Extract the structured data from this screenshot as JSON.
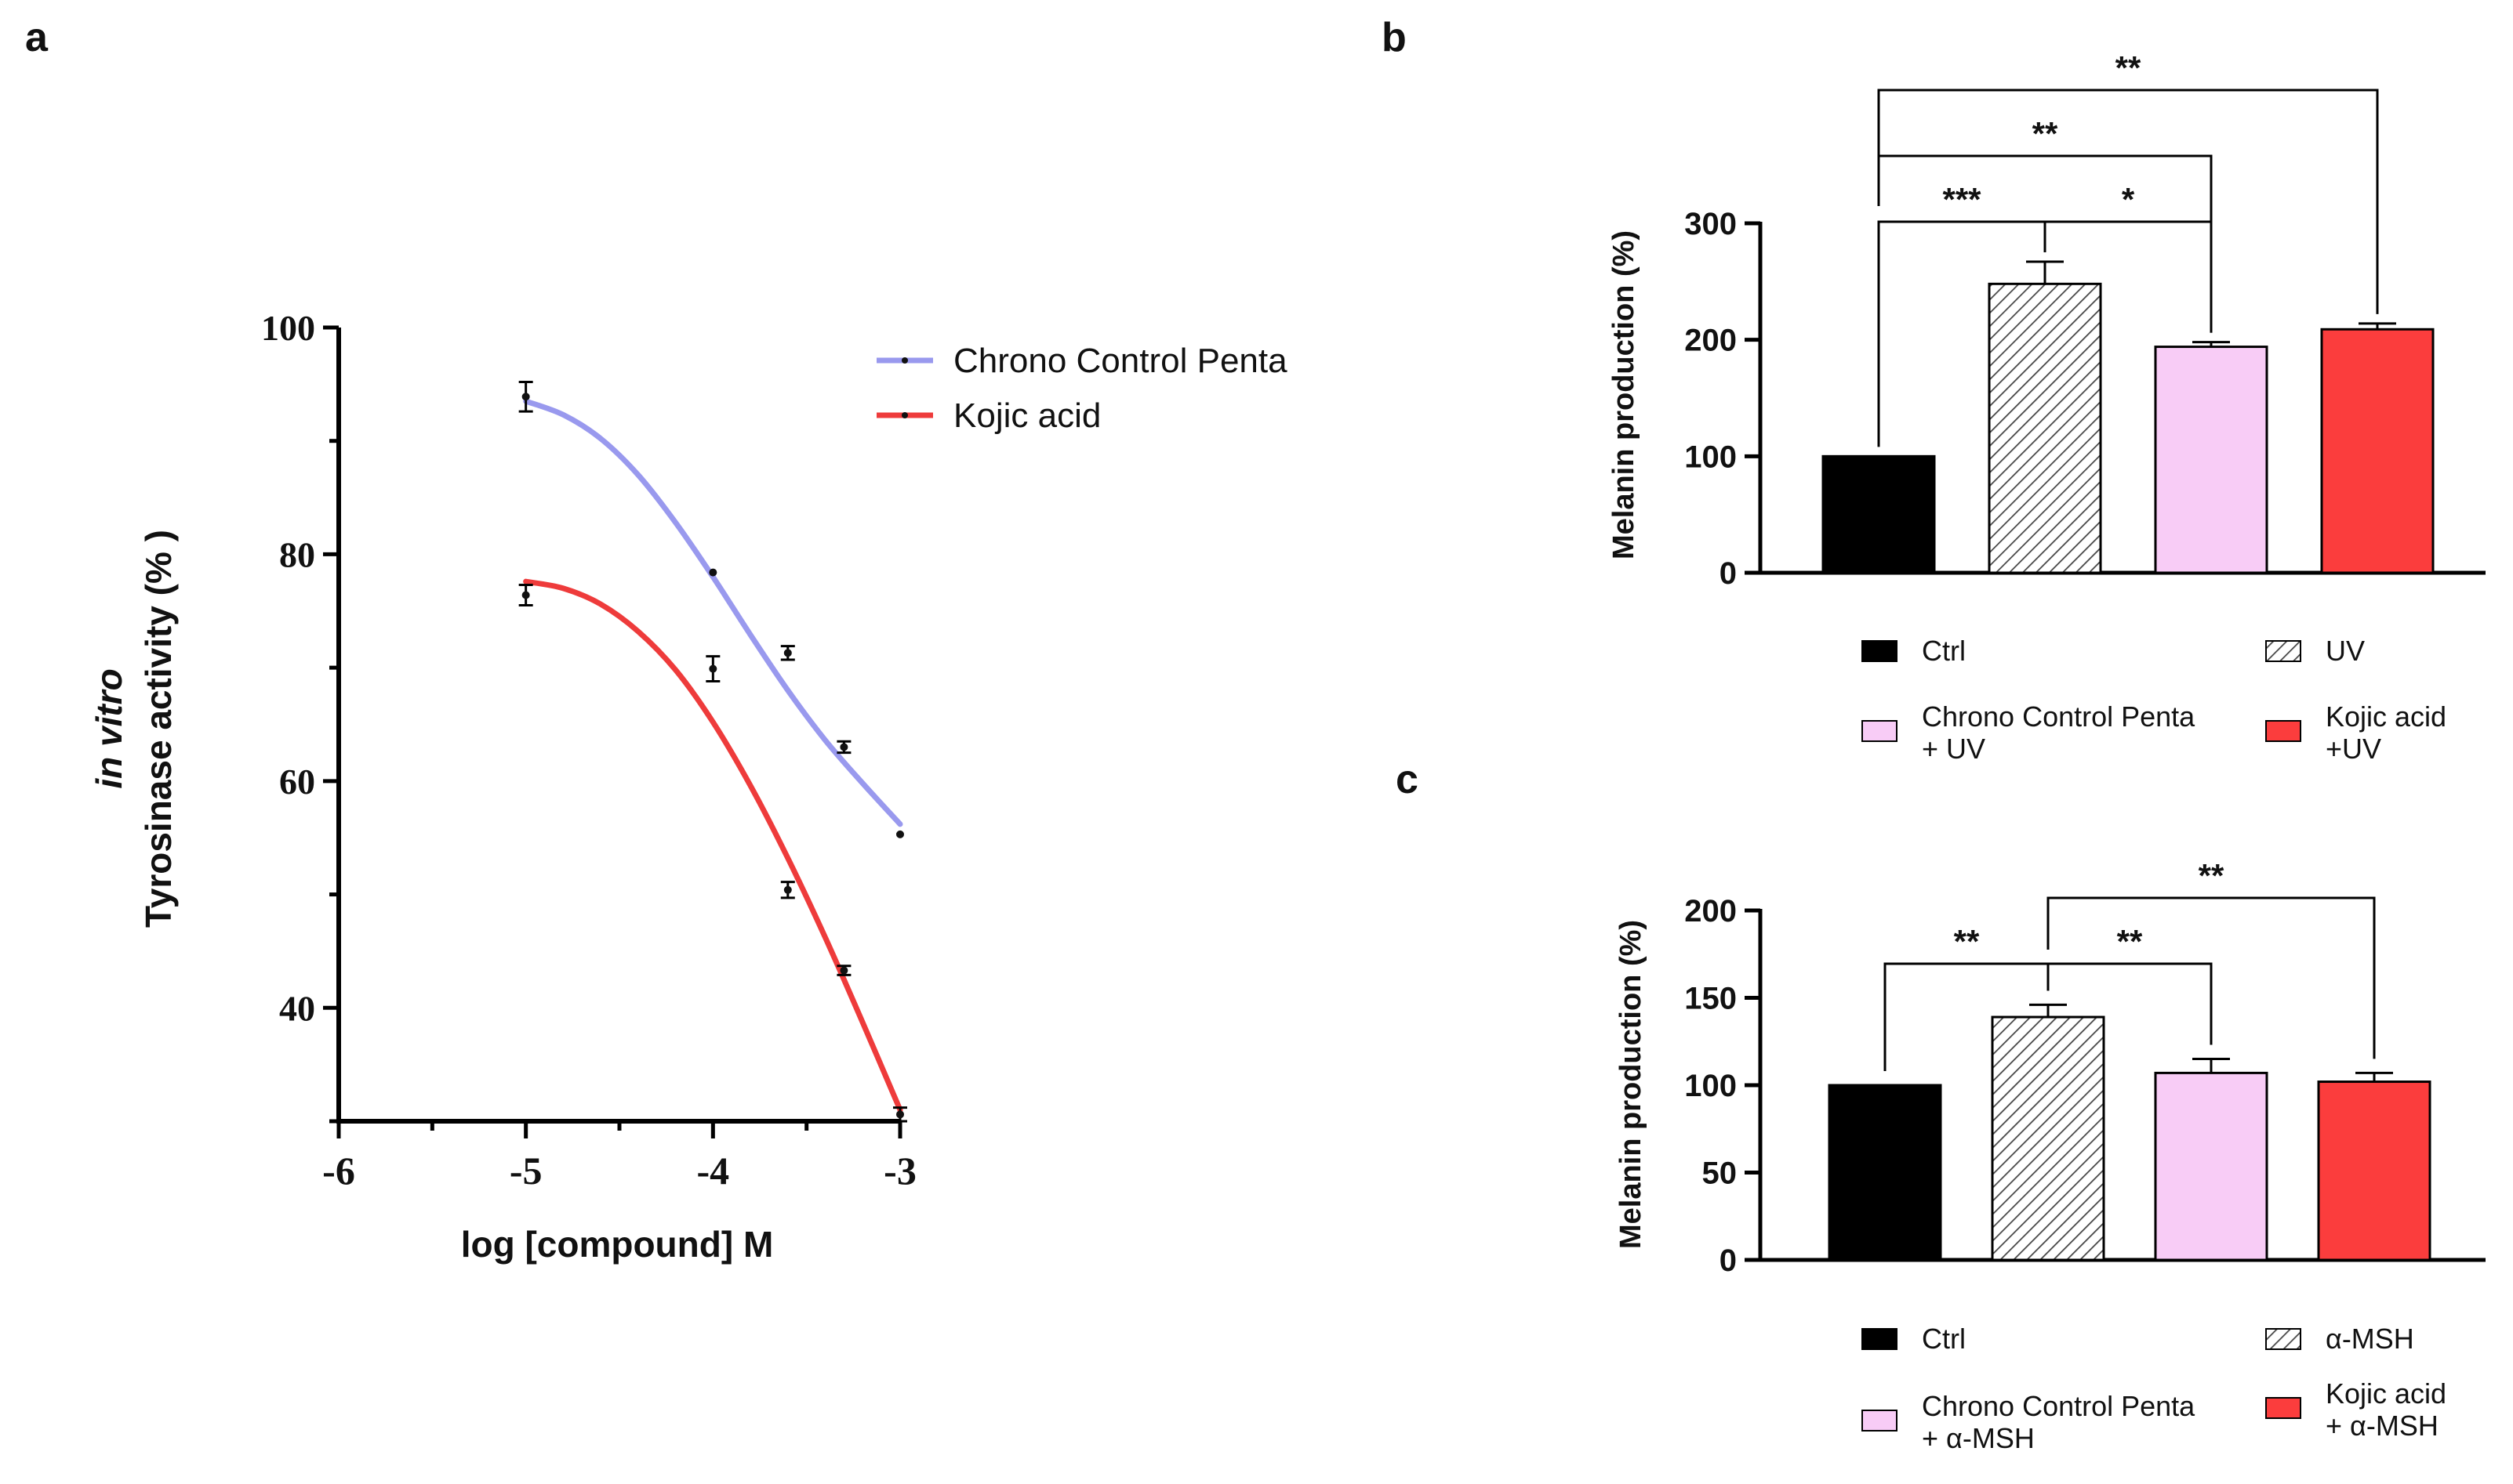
{
  "chart_data": [
    {
      "panel_label": "a",
      "type": "line",
      "ylabel_line1": "in vitro",
      "ylabel_line2": "Tyrosinase activity (% )",
      "xlabel": "log [compound] M",
      "xlim": [
        -6,
        -3
      ],
      "ylim": [
        30,
        100
      ],
      "x_ticks": [
        -6,
        -5,
        -4,
        -3
      ],
      "x_tick_labels": [
        "-6",
        "-5",
        "-4",
        "-3"
      ],
      "y_ticks": [
        40,
        60,
        80,
        100
      ],
      "y_tick_labels": [
        "40",
        "60",
        "80",
        "100"
      ],
      "legend_position": "top-right",
      "series": [
        {
          "name": "Chrono Control Penta",
          "color": "#9999ee",
          "points": [
            {
              "x": -5,
              "y": 93.9,
              "err": 1.3
            },
            {
              "x": -4,
              "y": 78.4,
              "err": 0
            },
            {
              "x": -3.6,
              "y": 71.3,
              "err": 0.6
            },
            {
              "x": -3.3,
              "y": 63.0,
              "err": 0.5
            },
            {
              "x": -3,
              "y": 55.3,
              "err": 0
            }
          ],
          "fit": [
            {
              "x": -5,
              "y": 93.5
            },
            {
              "x": -4.8,
              "y": 92.3
            },
            {
              "x": -4.6,
              "y": 90.2
            },
            {
              "x": -4.4,
              "y": 87.0
            },
            {
              "x": -4.2,
              "y": 82.8
            },
            {
              "x": -4.0,
              "y": 78.0
            },
            {
              "x": -3.8,
              "y": 72.9
            },
            {
              "x": -3.6,
              "y": 68.0
            },
            {
              "x": -3.4,
              "y": 63.6
            },
            {
              "x": -3.2,
              "y": 59.8
            },
            {
              "x": -3.0,
              "y": 56.2
            }
          ]
        },
        {
          "name": "Kojic acid",
          "color": "#ee3b3b",
          "points": [
            {
              "x": -5,
              "y": 76.4,
              "err": 0.9
            },
            {
              "x": -4,
              "y": 69.9,
              "err": 1.1
            },
            {
              "x": -3.6,
              "y": 50.4,
              "err": 0.7
            },
            {
              "x": -3.3,
              "y": 43.3,
              "err": 0.4
            },
            {
              "x": -3,
              "y": 30.6,
              "err": 0.6
            }
          ],
          "fit": [
            {
              "x": -5,
              "y": 77.6
            },
            {
              "x": -4.8,
              "y": 77.0
            },
            {
              "x": -4.6,
              "y": 75.6
            },
            {
              "x": -4.4,
              "y": 73.2
            },
            {
              "x": -4.2,
              "y": 69.8
            },
            {
              "x": -4.0,
              "y": 65.2
            },
            {
              "x": -3.8,
              "y": 59.6
            },
            {
              "x": -3.6,
              "y": 53.2
            },
            {
              "x": -3.4,
              "y": 46.2
            },
            {
              "x": -3.2,
              "y": 38.7
            },
            {
              "x": -3.0,
              "y": 31.0
            }
          ]
        }
      ]
    },
    {
      "panel_label": "b",
      "type": "bar",
      "ylabel": "Melanin production  (%)",
      "ylim": [
        0,
        300
      ],
      "y_ticks": [
        0,
        100,
        200,
        300
      ],
      "y_tick_labels": [
        "0",
        "100",
        "200",
        "300"
      ],
      "categories": [
        "Ctrl",
        "UV",
        "Chrono Control Penta + UV",
        "Kojic acid +UV"
      ],
      "values": [
        100,
        248,
        194,
        209
      ],
      "errors": [
        0,
        19,
        4,
        5
      ],
      "bar_styles": [
        {
          "fill": "#000000",
          "pattern": "none"
        },
        {
          "fill": "#ffffff",
          "pattern": "hatch"
        },
        {
          "fill": "#f8ccf6",
          "pattern": "none"
        },
        {
          "fill": "#fb3d3d",
          "pattern": "none"
        }
      ],
      "legend": [
        {
          "line1": "Ctrl",
          "line2": ""
        },
        {
          "line1": "UV",
          "line2": ""
        },
        {
          "line1": "Chrono Control Penta",
          "line2": "+ UV"
        },
        {
          "line1": "Kojic acid",
          "line2": "+UV"
        }
      ],
      "significance": [
        {
          "from": 0,
          "to": 1,
          "label": "***",
          "level": 0
        },
        {
          "from": 1,
          "to": 2,
          "label": "*",
          "level": 0
        },
        {
          "from": 0,
          "to": 2,
          "label": "**",
          "level": 1
        },
        {
          "from": 0,
          "to": 3,
          "label": "**",
          "level": 2
        }
      ]
    },
    {
      "panel_label": "c",
      "type": "bar",
      "ylabel": "Melanin production  (%)",
      "ylim": [
        0,
        200
      ],
      "y_ticks": [
        0,
        50,
        100,
        150,
        200
      ],
      "y_tick_labels": [
        "0",
        "50",
        "100",
        "150",
        "200"
      ],
      "categories": [
        "Ctrl",
        "α-MSH",
        "Chrono Control Penta + α-MSH",
        "Kojic acid + α-MSH"
      ],
      "values": [
        100,
        139,
        107,
        102
      ],
      "errors": [
        0,
        7,
        8,
        5
      ],
      "bar_styles": [
        {
          "fill": "#000000",
          "pattern": "none"
        },
        {
          "fill": "#ffffff",
          "pattern": "hatch"
        },
        {
          "fill": "#f8ccf6",
          "pattern": "none"
        },
        {
          "fill": "#fb3d3d",
          "pattern": "none"
        }
      ],
      "legend": [
        {
          "line1": "Ctrl",
          "line2": ""
        },
        {
          "line1": "α-MSH",
          "line2": ""
        },
        {
          "line1": "Chrono Control Penta",
          "line2": "+ α-MSH"
        },
        {
          "line1": "Kojic acid",
          "line2": "+ α-MSH"
        }
      ],
      "significance": [
        {
          "from": 0,
          "to": 1,
          "label": "**",
          "level": 0
        },
        {
          "from": 1,
          "to": 2,
          "label": "**",
          "level": 0
        },
        {
          "from": 1,
          "to": 3,
          "label": "**",
          "level": 1
        }
      ]
    }
  ]
}
